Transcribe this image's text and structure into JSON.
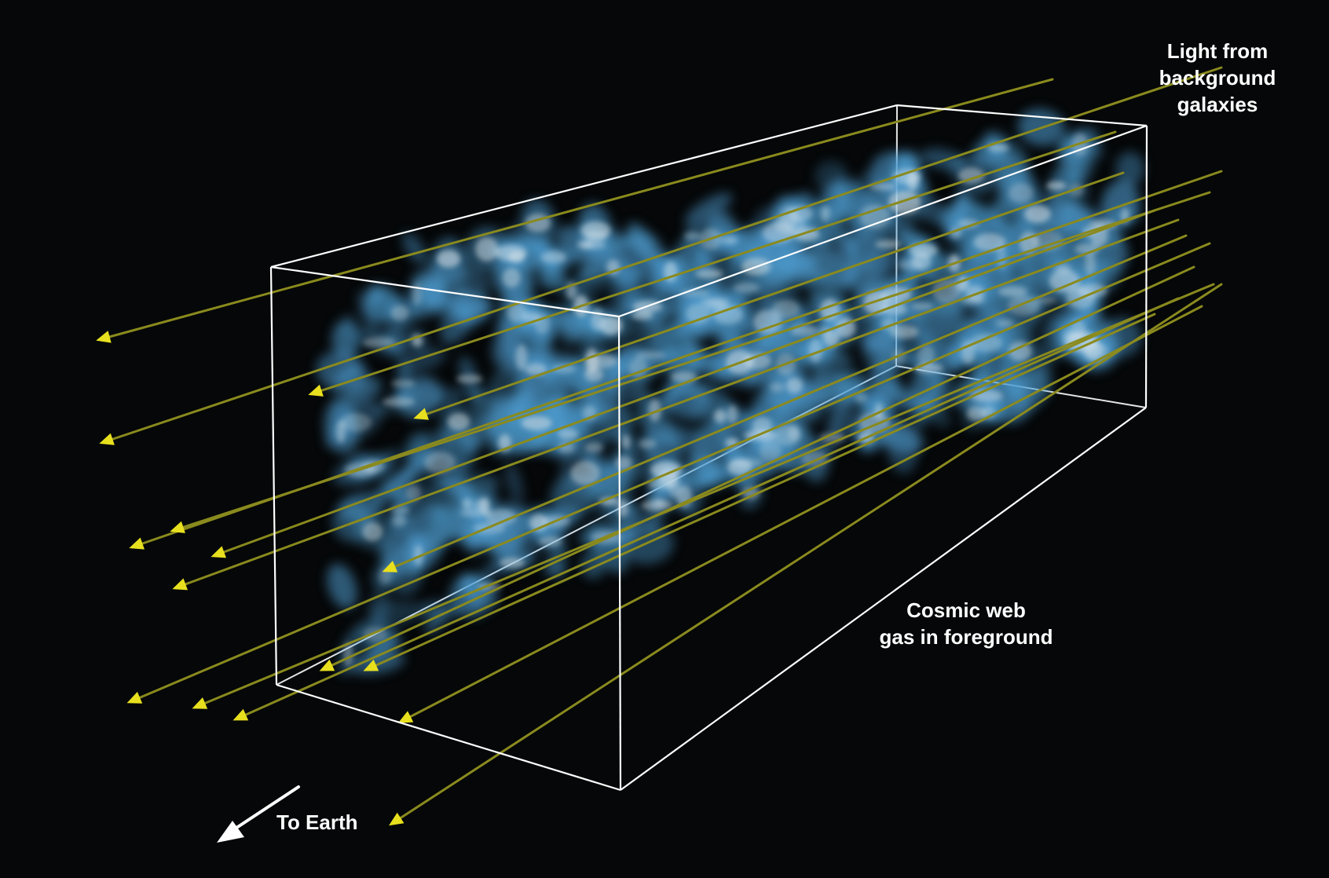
{
  "labels": {
    "light_from_background_galaxies": [
      "Light from",
      "background",
      "galaxies"
    ],
    "cosmic_web_gas": [
      "Cosmic web",
      "gas in foreground"
    ],
    "to_earth": "To Earth"
  },
  "colors": {
    "background": "#050708",
    "gas_blue": "#4f9fd4",
    "gas_white": "#dfe7ea",
    "light_ray_olive": "#8a8a1e",
    "arrowhead_yellow": "#e8e01e",
    "box_edges": "#ffffff",
    "text": "#ffffff"
  },
  "icons": {
    "to_earth_arrow": "arrow-down-left-icon",
    "ray_arrowhead": "triangle-arrowhead-icon"
  }
}
